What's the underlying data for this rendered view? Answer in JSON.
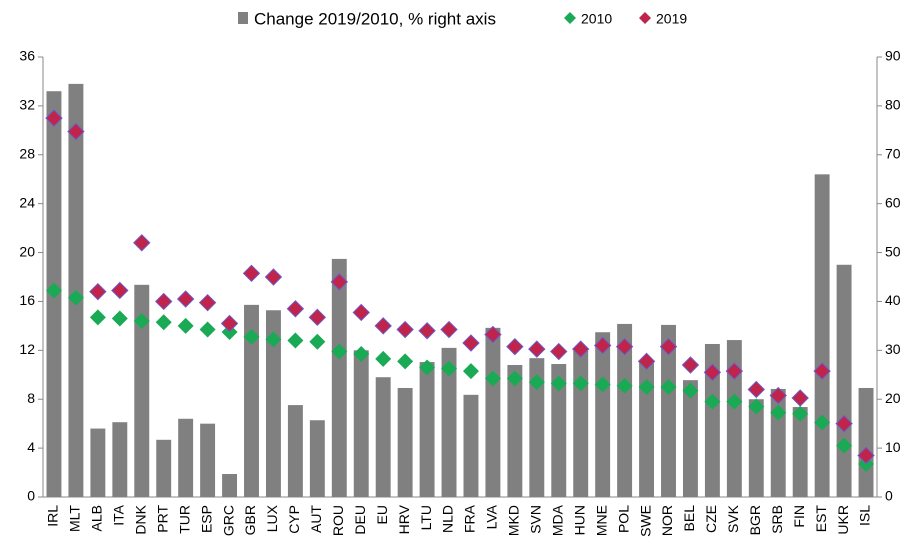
{
  "chart_data": {
    "type": "combo",
    "categories": [
      "IRL",
      "MLT",
      "ALB",
      "ITA",
      "DNK",
      "PRT",
      "TUR",
      "ESP",
      "GRC",
      "GBR",
      "LUX",
      "CYP",
      "AUT",
      "ROU",
      "DEU",
      "EU",
      "HRV",
      "LTU",
      "NLD",
      "FRA",
      "LVA",
      "MKD",
      "SVN",
      "MDA",
      "HUN",
      "MNE",
      "POL",
      "SWE",
      "NOR",
      "BEL",
      "CZE",
      "SVK",
      "BGR",
      "SRB",
      "FIN",
      "EST",
      "UKR",
      "ISL"
    ],
    "series": [
      {
        "name": "Change 2019/2010, % right axis",
        "type": "bar",
        "axis": "y2",
        "color": "#808080",
        "values": [
          83,
          84.5,
          14,
          15.3,
          43.4,
          11.7,
          16,
          15,
          4.7,
          39.3,
          38.2,
          18.8,
          15.7,
          48.7,
          30,
          24.5,
          22.3,
          27.6,
          30.5,
          20.9,
          34.6,
          27,
          28.4,
          27.2,
          29.9,
          33.7,
          35.4,
          27.4,
          35.2,
          23.9,
          31.3,
          32.1,
          20,
          22.1,
          18.4,
          66,
          47.5,
          22.3
        ]
      },
      {
        "name": "2010",
        "type": "scatter",
        "axis": "y",
        "color": "#1aaa55",
        "values": [
          16.9,
          16.3,
          14.7,
          14.6,
          14.4,
          14.3,
          14,
          13.7,
          13.5,
          13.1,
          12.9,
          12.8,
          12.7,
          11.9,
          11.7,
          11.3,
          11.1,
          10.6,
          10.5,
          10.3,
          9.7,
          9.7,
          9.4,
          9.3,
          9.3,
          9.2,
          9.1,
          9,
          9,
          8.7,
          7.8,
          7.8,
          7.4,
          6.9,
          6.8,
          6.1,
          4.2,
          2.7
        ]
      },
      {
        "name": "2019",
        "type": "scatter",
        "axis": "y",
        "color": "#c0244a",
        "values": [
          31,
          29.9,
          16.8,
          16.9,
          20.8,
          16,
          16.2,
          15.9,
          14.2,
          18.3,
          18,
          15.4,
          14.7,
          17.6,
          15.1,
          14,
          13.7,
          13.6,
          13.7,
          12.6,
          13.3,
          12.3,
          12.1,
          11.9,
          12.1,
          12.4,
          12.3,
          11.1,
          12.3,
          10.8,
          10.2,
          10.3,
          8.8,
          8.3,
          8.1,
          10.3,
          6,
          3.4
        ]
      }
    ],
    "ylim": [
      0,
      36
    ],
    "yticks": [
      0,
      4,
      8,
      12,
      16,
      20,
      24,
      28,
      32,
      36
    ],
    "y2lim": [
      0,
      90
    ],
    "y2ticks": [
      0,
      10,
      20,
      30,
      40,
      50,
      60,
      70,
      80,
      90
    ],
    "grid": false
  }
}
